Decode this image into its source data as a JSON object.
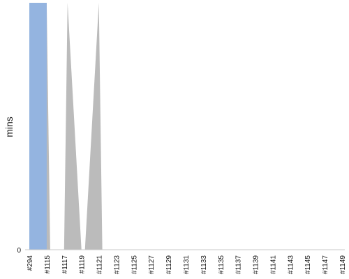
{
  "chart_data": {
    "type": "area",
    "ylabel": "mins",
    "xlabel": "",
    "title": "",
    "categories": [
      "#294",
      "#1115",
      "#1117",
      "#1119",
      "#1121",
      "#1123",
      "#1125",
      "#1127",
      "#1129",
      "#1131",
      "#1133",
      "#1135",
      "#1137",
      "#1139",
      "#1141",
      "#1143",
      "#1145",
      "#1147",
      "#1149"
    ],
    "y_tick_labels": [
      "0"
    ],
    "ylim": [
      0,
      1
    ],
    "grid": false,
    "legend": "none",
    "series": [
      {
        "color": "#bbbbbb",
        "x": [
          "#294",
          "#1115",
          "#1115",
          "#1117",
          "#1117",
          "#1119",
          "#1119",
          "#1121",
          "#1121",
          "#1123"
        ],
        "values": [
          1.0,
          1.0,
          0,
          0,
          1.0,
          0,
          0,
          1.0,
          0,
          0
        ]
      },
      {
        "color": "#94b4e0",
        "x": [
          "#294",
          "#1115"
        ],
        "values": [
          1.0,
          1.0
        ]
      }
    ]
  }
}
